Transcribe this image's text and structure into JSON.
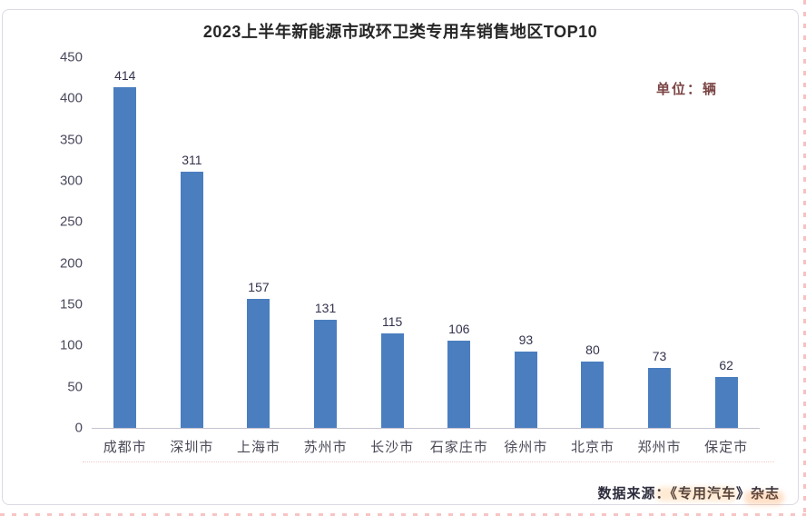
{
  "page": {
    "unit_label": "单位：辆",
    "source_label": "数据来源：《专用汽车》杂志"
  },
  "chart_data": {
    "type": "bar",
    "title": "2023上半年新能源市政环卫类专用车销售地区TOP10",
    "categories": [
      "成都市",
      "深圳市",
      "上海市",
      "苏州市",
      "长沙市",
      "石家庄市",
      "徐州市",
      "北京市",
      "郑州市",
      "保定市"
    ],
    "values": [
      414,
      311,
      157,
      131,
      115,
      106,
      93,
      80,
      73,
      62
    ],
    "unit": "辆",
    "xlabel": "",
    "ylabel": "",
    "ylim": [
      0,
      450
    ],
    "yticks": [
      0,
      50,
      100,
      150,
      200,
      250,
      300,
      350,
      400,
      450
    ],
    "grid": false,
    "legend": "none",
    "data_labels": true,
    "bar_color": "#4a7ebf",
    "source": "数据来源：《专用汽车》杂志"
  },
  "colors": {
    "bar": "#4a7ebf",
    "title_text": "#262626",
    "axis_text": "#4a4a5e",
    "unit_text": "#7b4444",
    "axis_line": "#c6c2d2",
    "card_border": "#dcd8e4",
    "background": "#ffffff"
  }
}
